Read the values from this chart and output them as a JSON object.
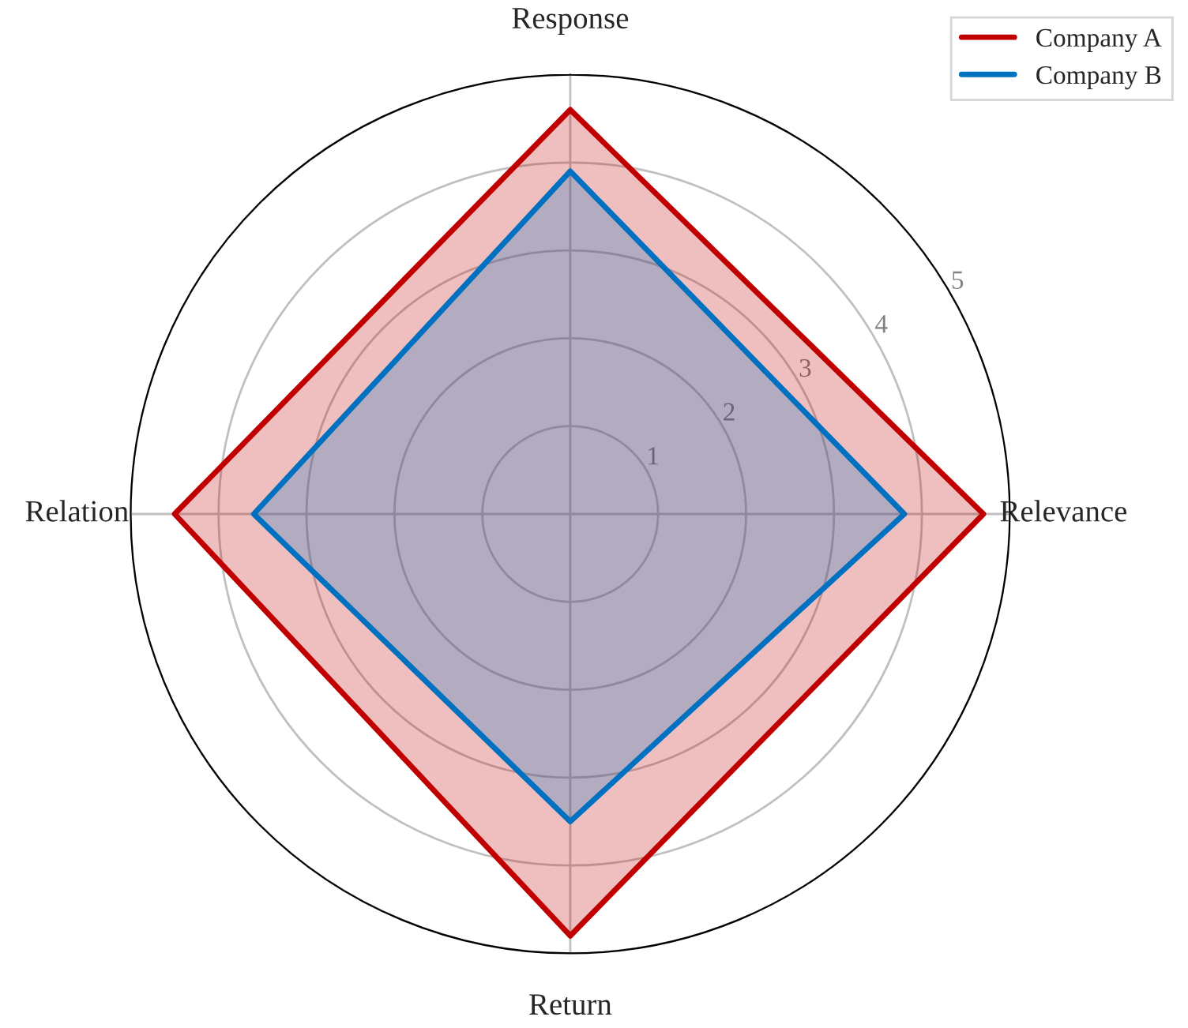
{
  "chart_data": {
    "type": "radar",
    "categories": [
      "Response",
      "Relevance",
      "Return",
      "Relation"
    ],
    "series": [
      {
        "name": "Company A",
        "color": "#c00000",
        "values": [
          4.6,
          4.7,
          4.8,
          4.5
        ]
      },
      {
        "name": "Company B",
        "color": "#0070c0",
        "values": [
          3.9,
          3.8,
          3.5,
          3.6
        ]
      }
    ],
    "ylim": [
      0,
      5
    ],
    "yticks": [
      1,
      2,
      3,
      4,
      5
    ],
    "grid": true,
    "legend": "top right"
  }
}
